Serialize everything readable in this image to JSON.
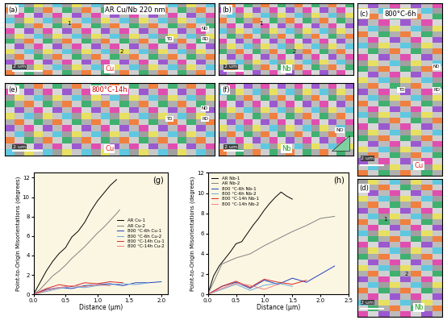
{
  "panels": [
    {
      "label": "(a)",
      "title": "AR Cu/Nb 220 nm",
      "material": "Cu",
      "material_color": "#e02020",
      "scale_bar": "2 um",
      "triad": [
        "ND",
        "TD",
        "RD"
      ],
      "markers": [
        "1",
        "2"
      ]
    },
    {
      "label": "(b)",
      "material": "Nb",
      "material_color": "#20a020",
      "scale_bar": "2 um",
      "markers": [
        "1",
        "2"
      ]
    },
    {
      "label": "(c)",
      "title": "800°C-6h",
      "material": "Cu",
      "material_color": "#e02020",
      "scale_bar": "2 um",
      "triad": [
        "ND",
        "TD",
        "RD"
      ]
    },
    {
      "label": "(d)",
      "material": "Nb",
      "material_color": "#20a020",
      "scale_bar": "2 um",
      "markers": [
        "1",
        "2"
      ]
    },
    {
      "label": "(e)",
      "title": "800°C-14h",
      "material": "Cu",
      "material_color": "#e02020",
      "scale_bar": "2 um",
      "triad": [
        "ND",
        "TD",
        "RD"
      ]
    },
    {
      "label": "(f)",
      "material": "Nb",
      "material_color": "#20a020",
      "scale_bar": "2 um",
      "ipf": "ND"
    }
  ],
  "chart_data": [
    {
      "type": "line",
      "title": "(g)",
      "x_label": "Distance (μm)",
      "y_label": "Point-to-Origin Misorientations (degrees)",
      "xlim": [
        0,
        2.1
      ],
      "ylim": [
        0,
        12.5
      ],
      "xticks": [
        {
          "value": 0,
          "label": "0.0"
        },
        {
          "value": 0.5,
          "label": "0.5"
        },
        {
          "value": 1,
          "label": "1.0"
        },
        {
          "value": 1.5,
          "label": "1.5"
        },
        {
          "value": 2,
          "label": "2.0"
        }
      ],
      "yticks": [
        0,
        2,
        4,
        6,
        8,
        10,
        12
      ],
      "grid": false,
      "legend": "center right",
      "series": [
        {
          "name": "AR Cu-1",
          "color": "#000000",
          "x": [
            0,
            0.1,
            0.2,
            0.3,
            0.4,
            0.5,
            0.6,
            0.7,
            0.8,
            0.9,
            1.0,
            1.1,
            1.2,
            1.3
          ],
          "values": [
            0,
            1.2,
            2.4,
            3.4,
            4.2,
            4.8,
            5.9,
            6.5,
            7.4,
            8.6,
            9.6,
            10.4,
            11.2,
            11.8
          ]
        },
        {
          "name": "AR Cu-2",
          "color": "#808080",
          "x": [
            0,
            0.1,
            0.2,
            0.3,
            0.4,
            0.5,
            0.6,
            0.7,
            0.8,
            0.9,
            1.0,
            1.1,
            1.2,
            1.3,
            1.35
          ],
          "values": [
            0,
            0.5,
            1.2,
            1.9,
            2.4,
            3.0,
            3.7,
            4.3,
            4.9,
            5.6,
            6.3,
            6.9,
            7.6,
            8.3,
            8.7
          ]
        },
        {
          "name": "800 °C-6h Cu-1",
          "color": "#1f3fbf",
          "x": [
            0,
            0.2,
            0.4,
            0.6,
            0.8,
            1.0,
            1.2,
            1.4,
            1.6,
            1.8,
            2.0
          ],
          "values": [
            0,
            0.5,
            0.7,
            0.6,
            0.9,
            1.0,
            1.1,
            0.9,
            1.2,
            1.2,
            1.3
          ]
        },
        {
          "name": "800 °C-6h Cu-2",
          "color": "#6fa8dc",
          "x": [
            0,
            0.2,
            0.4,
            0.6,
            0.8,
            1.0,
            1.2,
            1.4,
            1.6,
            1.8
          ],
          "values": [
            0,
            0.3,
            0.6,
            0.8,
            0.7,
            0.9,
            1.0,
            1.1,
            1.0,
            1.2
          ]
        },
        {
          "name": "800 °C-14h Cu-1",
          "color": "#d62728",
          "x": [
            0,
            0.2,
            0.4,
            0.6,
            0.8,
            1.0,
            1.2,
            1.4
          ],
          "values": [
            0,
            0.6,
            1.0,
            0.8,
            1.2,
            1.1,
            1.3,
            1.2
          ]
        },
        {
          "name": "800 °C-14h Cu-2",
          "color": "#f08080",
          "x": [
            0,
            0.2,
            0.4,
            0.6,
            0.8,
            1.0,
            1.2
          ],
          "values": [
            0,
            0.4,
            0.7,
            0.9,
            0.8,
            1.0,
            0.9
          ]
        }
      ]
    },
    {
      "type": "line",
      "title": "(h)",
      "x_label": "Distance (μm)",
      "y_label": "Point-to-Origin Misorientations (degrees)",
      "xlim": [
        0,
        2.5
      ],
      "ylim": [
        0,
        12
      ],
      "xticks": [
        {
          "value": 0,
          "label": "0.0"
        },
        {
          "value": 0.5,
          "label": "0.5"
        },
        {
          "value": 1,
          "label": "1.0"
        },
        {
          "value": 1.5,
          "label": "1.5"
        },
        {
          "value": 2,
          "label": "2.0"
        },
        {
          "value": 2.5,
          "label": "2.5"
        }
      ],
      "yticks": [
        0,
        2,
        4,
        6,
        8,
        10,
        12
      ],
      "grid": false,
      "legend": "upper left",
      "series": [
        {
          "name": "AR Nb-1",
          "color": "#000000",
          "x": [
            0,
            0.1,
            0.2,
            0.3,
            0.4,
            0.5,
            0.6,
            0.7,
            0.8,
            0.9,
            1.0,
            1.1,
            1.2,
            1.3,
            1.4,
            1.5
          ],
          "values": [
            0,
            1.8,
            2.8,
            3.5,
            4.2,
            5.0,
            5.2,
            6.0,
            6.8,
            7.5,
            8.3,
            9.0,
            9.6,
            10.1,
            9.7,
            9.4
          ]
        },
        {
          "name": "AR Nb-2",
          "color": "#808080",
          "x": [
            0,
            0.25,
            0.5,
            0.75,
            1.0,
            1.25,
            1.5,
            1.75,
            2.0,
            2.25
          ],
          "values": [
            0,
            3.0,
            3.6,
            4.0,
            4.8,
            5.5,
            6.2,
            6.8,
            7.5,
            7.7
          ]
        },
        {
          "name": "800 °C-6h Nb-1",
          "color": "#1f3fbf",
          "x": [
            0,
            0.25,
            0.5,
            0.75,
            1.0,
            1.25,
            1.5,
            1.75,
            2.0,
            2.25
          ],
          "values": [
            0,
            0.8,
            1.2,
            0.6,
            1.4,
            1.0,
            1.6,
            1.2,
            2.0,
            2.8
          ]
        },
        {
          "name": "800 °C-6h Nb-2",
          "color": "#6fa8dc",
          "x": [
            0,
            0.25,
            0.5,
            0.75,
            1.0,
            1.25,
            1.5
          ],
          "values": [
            0,
            0.5,
            1.0,
            0.4,
            0.9,
            1.1,
            0.8
          ]
        },
        {
          "name": "800 °C-14h Nb-1",
          "color": "#d62728",
          "x": [
            0,
            0.25,
            0.5,
            0.75,
            1.0,
            1.25,
            1.5,
            1.75
          ],
          "values": [
            0,
            0.8,
            1.3,
            0.7,
            1.5,
            1.2,
            1.0,
            1.4
          ]
        },
        {
          "name": "800 °C-14h Nb-2",
          "color": "#f08080",
          "x": [
            0,
            0.25,
            0.5,
            0.75,
            1.0,
            1.25
          ],
          "values": [
            0,
            0.6,
            1.1,
            0.9,
            0.5,
            1.0
          ]
        }
      ]
    }
  ]
}
